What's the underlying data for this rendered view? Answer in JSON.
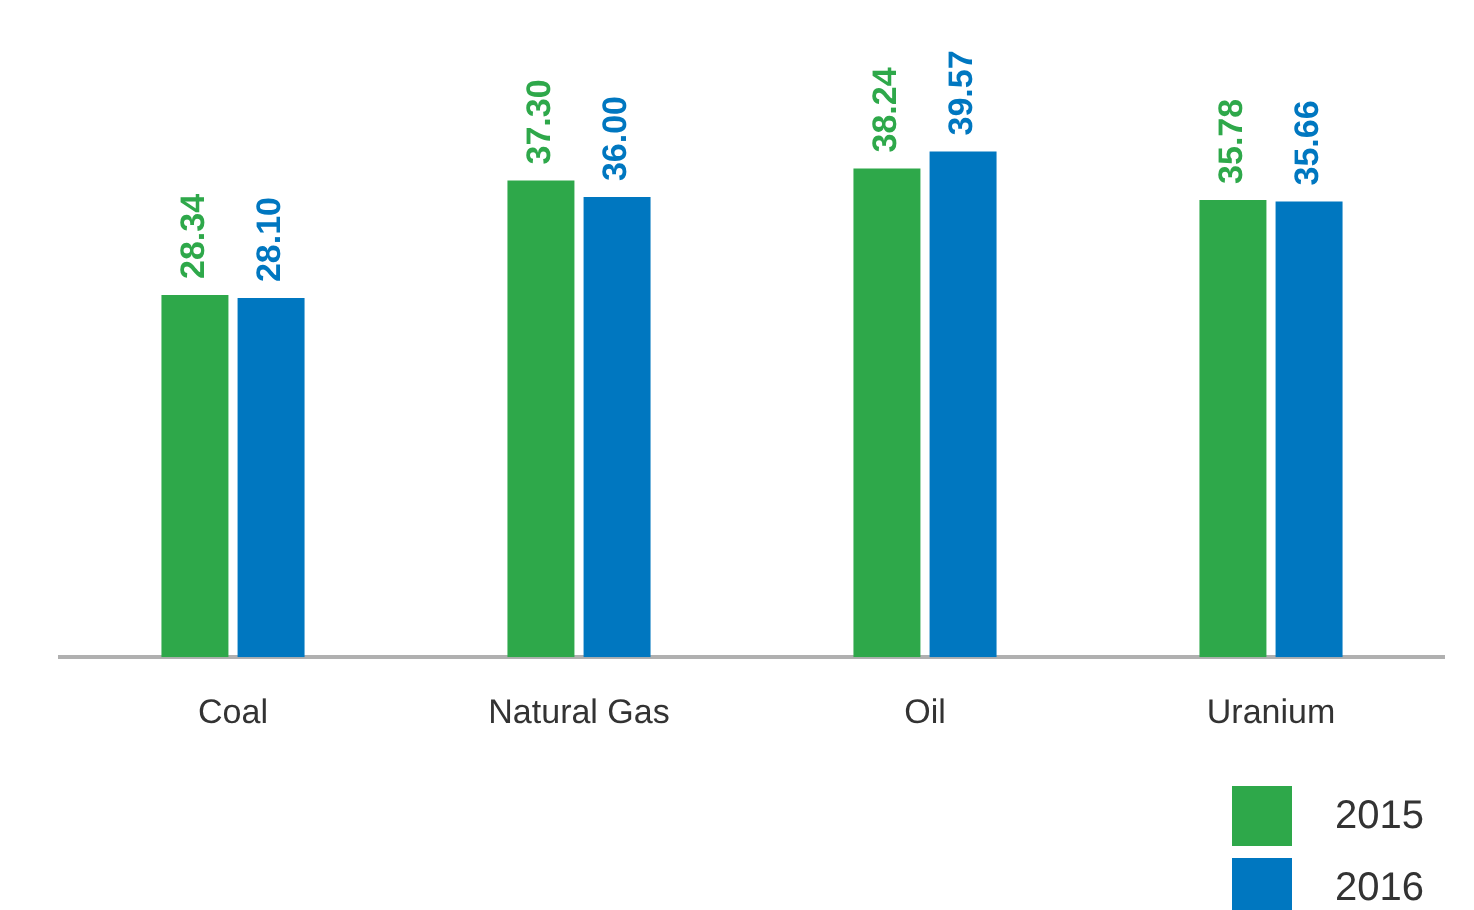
{
  "chart_data": {
    "type": "bar",
    "categories": [
      "Coal",
      "Natural Gas",
      "Oil",
      "Uranium"
    ],
    "series": [
      {
        "name": "2015",
        "color": "#2ea84a",
        "values": [
          28.34,
          37.3,
          38.24,
          35.78
        ],
        "value_labels": [
          "28.34",
          "37.30",
          "38.24",
          "35.78"
        ]
      },
      {
        "name": "2016",
        "color": "#0077c0",
        "values": [
          28.1,
          36.0,
          39.57,
          35.66
        ],
        "value_labels": [
          "28.10",
          "36.00",
          "39.57",
          "35.66"
        ]
      }
    ],
    "legend": "bottom right",
    "grid": false
  }
}
